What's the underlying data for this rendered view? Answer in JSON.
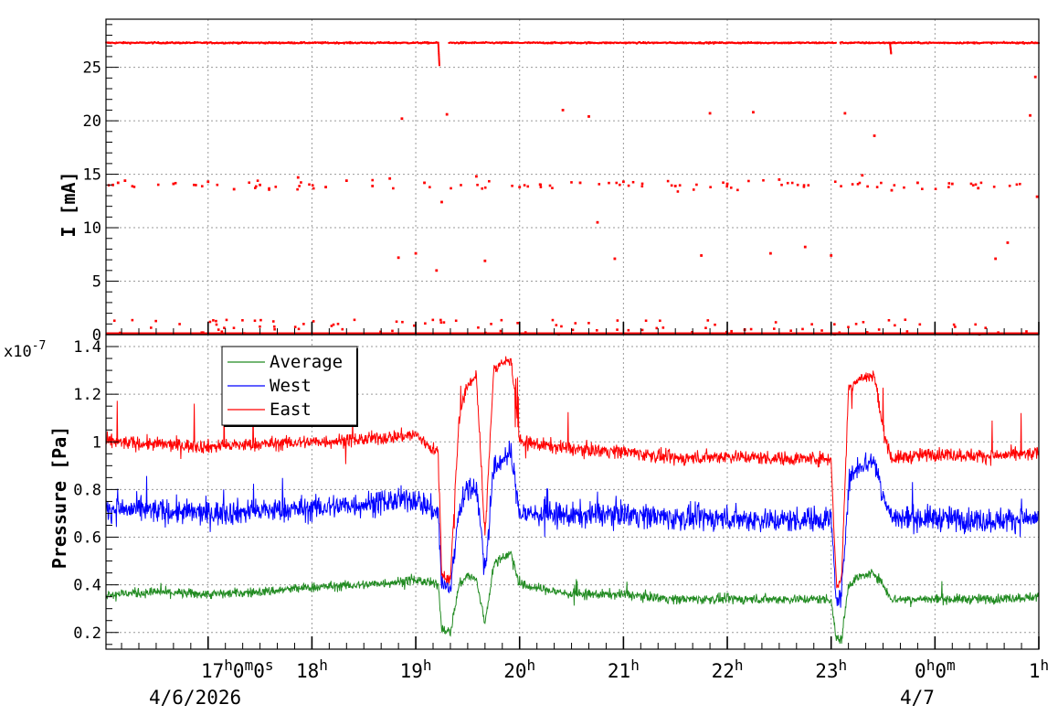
{
  "chart_data": [
    {
      "type": "scatter",
      "ylabel": "I [mA]",
      "ylim": [
        0,
        29.5
      ],
      "yticks": [
        "0",
        "5",
        "10",
        "15",
        "20",
        "25"
      ],
      "grid": true,
      "x_range": [
        "16:01",
        "01:00"
      ],
      "series": [
        {
          "color": "#ff0000",
          "baseline_mA": 27.3,
          "gaps": [
            [
              "19:13",
              "19:19"
            ],
            [
              "23:03",
              "23:05"
            ]
          ],
          "dips": [
            {
              "x": "19:13",
              "min": 25.2
            },
            {
              "x": "23:34",
              "min": 26.3
            }
          ],
          "zero_level_mA": 0,
          "outliers": [
            {
              "x": "16:05",
              "y": 14.0
            },
            {
              "x": "16:08",
              "y": 14.2
            },
            {
              "x": "16:12",
              "y": 14.4
            },
            {
              "x": "16:40",
              "y": 14.1
            },
            {
              "x": "17:00",
              "y": 14.3
            },
            {
              "x": "17:15",
              "y": 13.6
            },
            {
              "x": "17:30",
              "y": 14.0
            },
            {
              "x": "17:52",
              "y": 14.7
            },
            {
              "x": "18:08",
              "y": 13.8
            },
            {
              "x": "18:20",
              "y": 14.4
            },
            {
              "x": "18:35",
              "y": 13.9
            },
            {
              "x": "18:45",
              "y": 14.6
            },
            {
              "x": "18:50",
              "y": 7.2
            },
            {
              "x": "18:52",
              "y": 20.2
            },
            {
              "x": "19:00",
              "y": 7.6
            },
            {
              "x": "19:05",
              "y": 14.2
            },
            {
              "x": "19:12",
              "y": 6.0
            },
            {
              "x": "19:15",
              "y": 12.4
            },
            {
              "x": "19:18",
              "y": 20.6
            },
            {
              "x": "19:35",
              "y": 14.8
            },
            {
              "x": "19:40",
              "y": 6.9
            },
            {
              "x": "20:00",
              "y": 13.8
            },
            {
              "x": "20:25",
              "y": 21.0
            },
            {
              "x": "20:35",
              "y": 14.2
            },
            {
              "x": "20:40",
              "y": 20.4
            },
            {
              "x": "20:45",
              "y": 10.5
            },
            {
              "x": "20:55",
              "y": 7.1
            },
            {
              "x": "21:00",
              "y": 14.3
            },
            {
              "x": "21:30",
              "y": 13.9
            },
            {
              "x": "21:45",
              "y": 7.4
            },
            {
              "x": "21:50",
              "y": 20.7
            },
            {
              "x": "22:00",
              "y": 14.1
            },
            {
              "x": "22:15",
              "y": 20.8
            },
            {
              "x": "22:25",
              "y": 7.6
            },
            {
              "x": "22:30",
              "y": 14.5
            },
            {
              "x": "22:45",
              "y": 8.2
            },
            {
              "x": "23:00",
              "y": 7.4
            },
            {
              "x": "23:08",
              "y": 20.7
            },
            {
              "x": "23:18",
              "y": 14.9
            },
            {
              "x": "23:25",
              "y": 18.6
            },
            {
              "x": "23:35",
              "y": 13.5
            },
            {
              "x": "23:50",
              "y": 14.2
            },
            {
              "x": "00:10",
              "y": 14.1
            },
            {
              "x": "00:25",
              "y": 13.7
            },
            {
              "x": "00:35",
              "y": 7.1
            },
            {
              "x": "00:42",
              "y": 8.6
            },
            {
              "x": "00:55",
              "y": 20.5
            },
            {
              "x": "00:58",
              "y": 24.1
            },
            {
              "x": "00:59",
              "y": 12.9
            }
          ]
        }
      ]
    },
    {
      "type": "line",
      "ylabel": "Pressure [Pa]",
      "y_multiplier": "x10",
      "y_exponent": "-7",
      "ylim": [
        1.3e-08,
        1.45e-07
      ],
      "yticks": [
        "0.2",
        "0.4",
        "0.6",
        "0.8",
        "1",
        "1.2",
        "1.4"
      ],
      "grid": true,
      "x_range": [
        "16:01",
        "01:00"
      ],
      "xticks": [
        "17h0m0s",
        "18h",
        "19h",
        "20h",
        "21h",
        "22h",
        "23h",
        "0h0m",
        "1h"
      ],
      "xtick_parts": [
        {
          "h": "17",
          "hs": "h",
          "m": "0",
          "ms": "m",
          "s": "0",
          "ss": "s"
        },
        {
          "h": "18",
          "hs": "h"
        },
        {
          "h": "19",
          "hs": "h"
        },
        {
          "h": "20",
          "hs": "h"
        },
        {
          "h": "21",
          "hs": "h"
        },
        {
          "h": "22",
          "hs": "h"
        },
        {
          "h": "23",
          "hs": "h"
        },
        {
          "h": "0",
          "hs": "h",
          "m": "0",
          "ms": "m"
        },
        {
          "h": "1",
          "hs": "h"
        }
      ],
      "date_labels": [
        "4/6/2026",
        "4/7"
      ],
      "legend": {
        "placement": "top-left",
        "entries": [
          "Average",
          "West",
          "East"
        ]
      },
      "series": [
        {
          "name": "Average",
          "color": "#228b22",
          "points": [
            [
              "16:01",
              0.36
            ],
            [
              "16:30",
              0.37
            ],
            [
              "17:00",
              0.36
            ],
            [
              "17:30",
              0.37
            ],
            [
              "18:00",
              0.39
            ],
            [
              "18:30",
              0.4
            ],
            [
              "19:00",
              0.42
            ],
            [
              "19:13",
              0.4
            ],
            [
              "19:15",
              0.22
            ],
            [
              "19:20",
              0.2
            ],
            [
              "19:25",
              0.4
            ],
            [
              "19:30",
              0.44
            ],
            [
              "19:35",
              0.42
            ],
            [
              "19:40",
              0.24
            ],
            [
              "19:45",
              0.48
            ],
            [
              "19:50",
              0.52
            ],
            [
              "19:55",
              0.53
            ],
            [
              "20:00",
              0.4
            ],
            [
              "20:30",
              0.36
            ],
            [
              "21:00",
              0.36
            ],
            [
              "21:30",
              0.34
            ],
            [
              "22:00",
              0.34
            ],
            [
              "22:30",
              0.34
            ],
            [
              "23:00",
              0.34
            ],
            [
              "23:03",
              0.17
            ],
            [
              "23:06",
              0.17
            ],
            [
              "23:10",
              0.4
            ],
            [
              "23:15",
              0.43
            ],
            [
              "23:25",
              0.45
            ],
            [
              "23:30",
              0.4
            ],
            [
              "23:35",
              0.34
            ],
            [
              "00:00",
              0.34
            ],
            [
              "00:30",
              0.34
            ],
            [
              "01:00",
              0.35
            ]
          ]
        },
        {
          "name": "West",
          "color": "#0000ff",
          "points": [
            [
              "16:01",
              0.72
            ],
            [
              "16:30",
              0.71
            ],
            [
              "17:00",
              0.7
            ],
            [
              "17:30",
              0.71
            ],
            [
              "18:00",
              0.72
            ],
            [
              "18:30",
              0.74
            ],
            [
              "19:00",
              0.76
            ],
            [
              "19:13",
              0.7
            ],
            [
              "19:15",
              0.4
            ],
            [
              "19:20",
              0.38
            ],
            [
              "19:25",
              0.72
            ],
            [
              "19:30",
              0.8
            ],
            [
              "19:35",
              0.82
            ],
            [
              "19:40",
              0.45
            ],
            [
              "19:45",
              0.88
            ],
            [
              "19:50",
              0.93
            ],
            [
              "19:55",
              0.95
            ],
            [
              "20:00",
              0.7
            ],
            [
              "20:30",
              0.69
            ],
            [
              "21:00",
              0.7
            ],
            [
              "21:30",
              0.68
            ],
            [
              "22:00",
              0.68
            ],
            [
              "22:30",
              0.67
            ],
            [
              "23:00",
              0.68
            ],
            [
              "23:03",
              0.33
            ],
            [
              "23:06",
              0.35
            ],
            [
              "23:10",
              0.82
            ],
            [
              "23:15",
              0.9
            ],
            [
              "23:25",
              0.92
            ],
            [
              "23:30",
              0.78
            ],
            [
              "23:35",
              0.68
            ],
            [
              "00:00",
              0.68
            ],
            [
              "00:30",
              0.67
            ],
            [
              "01:00",
              0.68
            ]
          ]
        },
        {
          "name": "East",
          "color": "#ff0000",
          "points": [
            [
              "16:01",
              1.0
            ],
            [
              "16:30",
              0.99
            ],
            [
              "17:00",
              0.98
            ],
            [
              "17:30",
              0.99
            ],
            [
              "18:00",
              1.0
            ],
            [
              "18:30",
              1.01
            ],
            [
              "19:00",
              1.03
            ],
            [
              "19:13",
              0.95
            ],
            [
              "19:15",
              0.45
            ],
            [
              "19:20",
              0.42
            ],
            [
              "19:25",
              1.1
            ],
            [
              "19:30",
              1.24
            ],
            [
              "19:35",
              1.28
            ],
            [
              "19:40",
              0.6
            ],
            [
              "19:45",
              1.3
            ],
            [
              "19:50",
              1.33
            ],
            [
              "19:55",
              1.35
            ],
            [
              "20:00",
              1.0
            ],
            [
              "20:30",
              0.97
            ],
            [
              "21:00",
              0.96
            ],
            [
              "21:30",
              0.93
            ],
            [
              "22:00",
              0.94
            ],
            [
              "22:30",
              0.93
            ],
            [
              "23:00",
              0.93
            ],
            [
              "23:03",
              0.4
            ],
            [
              "23:06",
              0.42
            ],
            [
              "23:10",
              1.22
            ],
            [
              "23:15",
              1.26
            ],
            [
              "23:25",
              1.28
            ],
            [
              "23:30",
              1.05
            ],
            [
              "23:35",
              0.93
            ],
            [
              "00:00",
              0.95
            ],
            [
              "00:30",
              0.94
            ],
            [
              "01:00",
              0.95
            ]
          ]
        }
      ]
    }
  ]
}
